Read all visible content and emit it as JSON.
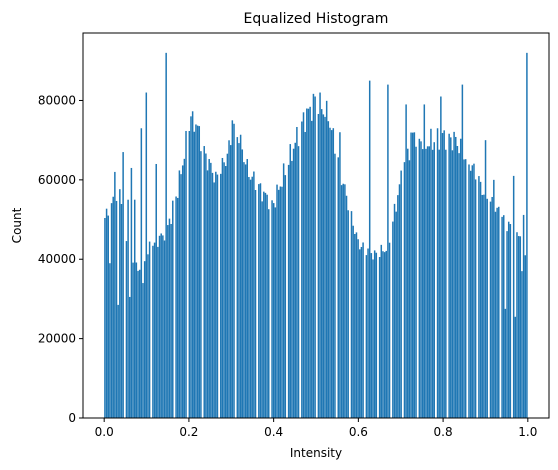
{
  "chart_data": {
    "type": "bar",
    "title": "Equalized Histogram",
    "xlabel": "Intensity",
    "ylabel": "Count",
    "xlim": [
      -0.05,
      1.05
    ],
    "ylim": [
      0,
      97000
    ],
    "xticks": [
      0.0,
      0.2,
      0.4,
      0.6,
      0.8,
      1.0
    ],
    "xtick_labels": [
      "0.0",
      "0.2",
      "0.4",
      "0.6",
      "0.8",
      "1.0"
    ],
    "yticks": [
      0,
      20000,
      40000,
      60000,
      80000
    ],
    "ytick_labels": [
      "0",
      "20000",
      "40000",
      "60000",
      "80000"
    ],
    "grid": false,
    "bar_color": "#1f77b4",
    "bins": 256,
    "bin_range": [
      0.0,
      1.0
    ],
    "envelope": [
      [
        0.0,
        50000
      ],
      [
        0.02,
        54000
      ],
      [
        0.04,
        57000
      ],
      [
        0.055,
        42000
      ],
      [
        0.08,
        37000
      ],
      [
        0.11,
        43000
      ],
      [
        0.15,
        48000
      ],
      [
        0.175,
        58000
      ],
      [
        0.2,
        73000
      ],
      [
        0.215,
        75000
      ],
      [
        0.24,
        66000
      ],
      [
        0.265,
        60000
      ],
      [
        0.29,
        66000
      ],
      [
        0.31,
        74000
      ],
      [
        0.34,
        62000
      ],
      [
        0.38,
        56000
      ],
      [
        0.4,
        54000
      ],
      [
        0.43,
        63000
      ],
      [
        0.47,
        75000
      ],
      [
        0.5,
        80000
      ],
      [
        0.53,
        76000
      ],
      [
        0.56,
        61000
      ],
      [
        0.6,
        44000
      ],
      [
        0.64,
        41000
      ],
      [
        0.67,
        43000
      ],
      [
        0.7,
        60000
      ],
      [
        0.73,
        72000
      ],
      [
        0.76,
        69000
      ],
      [
        0.8,
        71000
      ],
      [
        0.83,
        70000
      ],
      [
        0.87,
        63000
      ],
      [
        0.9,
        56000
      ],
      [
        0.93,
        52000
      ],
      [
        0.96,
        48000
      ],
      [
        0.98,
        46000
      ],
      [
        1.0,
        57000
      ]
    ],
    "gaps": [
      0.025,
      0.045,
      0.063,
      0.086,
      0.11,
      0.122,
      0.135,
      0.165,
      0.195,
      0.23,
      0.27,
      0.31,
      0.36,
      0.39,
      0.43,
      0.46,
      0.5,
      0.545,
      0.578,
      0.615,
      0.645,
      0.676,
      0.705,
      0.74,
      0.78,
      0.81,
      0.855,
      0.88,
      0.905,
      0.935,
      0.96,
      0.985
    ],
    "spikes": [
      [
        0.006,
        51000
      ],
      [
        0.012,
        49000
      ],
      [
        0.024,
        62000
      ],
      [
        0.043,
        67000
      ],
      [
        0.055,
        55000
      ],
      [
        0.062,
        63000
      ],
      [
        0.072,
        55000
      ],
      [
        0.085,
        73000
      ],
      [
        0.098,
        82000
      ],
      [
        0.12,
        64000
      ],
      [
        0.143,
        92000
      ],
      [
        0.205,
        76000
      ],
      [
        0.3,
        75000
      ],
      [
        0.498,
        81000
      ],
      [
        0.556,
        72000
      ],
      [
        0.625,
        85000
      ],
      [
        0.668,
        84000
      ],
      [
        0.712,
        79000
      ],
      [
        0.755,
        79000
      ],
      [
        0.792,
        81000
      ],
      [
        0.843,
        84000
      ],
      [
        0.9,
        70000
      ],
      [
        0.918,
        60000
      ],
      [
        0.965,
        61000
      ],
      [
        0.995,
        92000
      ]
    ],
    "dips": [
      [
        0.013,
        39000
      ],
      [
        0.033,
        28500
      ],
      [
        0.058,
        30500
      ],
      [
        0.09,
        34000
      ],
      [
        0.135,
        46000
      ],
      [
        0.945,
        27500
      ],
      [
        0.968,
        25500
      ],
      [
        0.985,
        37000
      ],
      [
        0.992,
        41000
      ]
    ]
  }
}
